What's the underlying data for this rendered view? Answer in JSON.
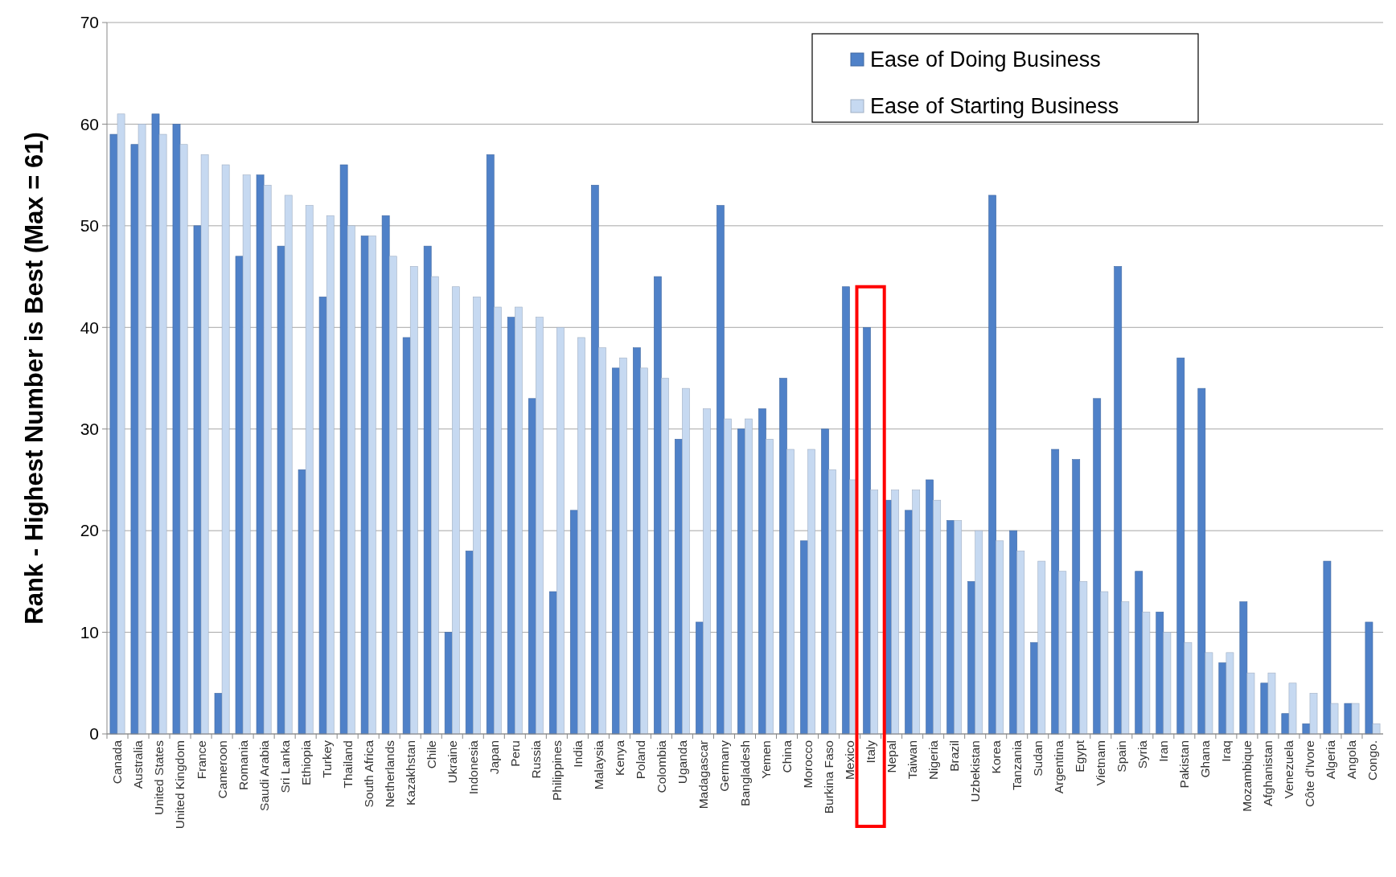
{
  "chart_data": {
    "type": "bar",
    "ylabel": "Rank - Highest Number is Best (Max = 61)",
    "categories": [
      "Canada",
      "Australia",
      "United States",
      "United Kingdom",
      "France",
      "Cameroon",
      "Romania",
      "Saudi Arabia",
      "Sri Lanka",
      "Ethiopia",
      "Turkey",
      "Thailand",
      "South Africa",
      "Netherlands",
      "Kazakhstan",
      "Chile",
      "Ukraine",
      "Indonesia",
      "Japan",
      "Peru",
      "Russia",
      "Philippines",
      "India",
      "Malaysia",
      "Kenya",
      "Poland",
      "Colombia",
      "Uganda",
      "Madagascar",
      "Germany",
      "Bangladesh",
      "Yemen",
      "China",
      "Morocco",
      "Burkina Faso",
      "Mexico",
      "Italy",
      "Nepal",
      "Taiwan",
      "Nigeria",
      "Brazil",
      "Uzbekistan",
      "Korea",
      "Tanzania",
      "Sudan",
      "Argentina",
      "Egypt",
      "Vietnam",
      "Spain",
      "Syria",
      "Iran",
      "Pakistan",
      "Ghana",
      "Iraq",
      "Mozambique",
      "Afghanistan",
      "Venezuela",
      "Côte d'Ivore",
      "Algeria",
      "Angola",
      "Congo."
    ],
    "series": [
      {
        "name": "Ease of Doing Business",
        "color": "#4f81c8",
        "values": [
          59,
          58,
          61,
          60,
          50,
          4,
          47,
          55,
          48,
          26,
          43,
          56,
          49,
          51,
          39,
          48,
          10,
          18,
          57,
          41,
          33,
          14,
          22,
          54,
          36,
          38,
          45,
          29,
          11,
          52,
          30,
          32,
          35,
          19,
          30,
          44,
          40,
          23,
          22,
          25,
          21,
          15,
          53,
          20,
          9,
          28,
          27,
          33,
          46,
          16,
          12,
          37,
          34,
          7,
          13,
          5,
          2,
          1,
          17,
          3,
          11
        ]
      },
      {
        "name": "Ease of Starting Business",
        "color": "#c6d9f1",
        "values": [
          61,
          60,
          59,
          58,
          57,
          56,
          55,
          54,
          53,
          52,
          51,
          50,
          49,
          47,
          46,
          45,
          44,
          43,
          42,
          42,
          41,
          40,
          39,
          38,
          37,
          36,
          35,
          34,
          32,
          31,
          31,
          29,
          28,
          28,
          26,
          25,
          24,
          24,
          24,
          23,
          21,
          20,
          19,
          18,
          17,
          16,
          15,
          14,
          13,
          12,
          10,
          9,
          8,
          8,
          6,
          6,
          5,
          4,
          3,
          3,
          1
        ]
      }
    ],
    "ylim": [
      0,
      70
    ],
    "yticks": [
      0,
      10,
      20,
      30,
      40,
      50,
      60,
      70
    ],
    "grid": "y",
    "legend": "top right"
  }
}
